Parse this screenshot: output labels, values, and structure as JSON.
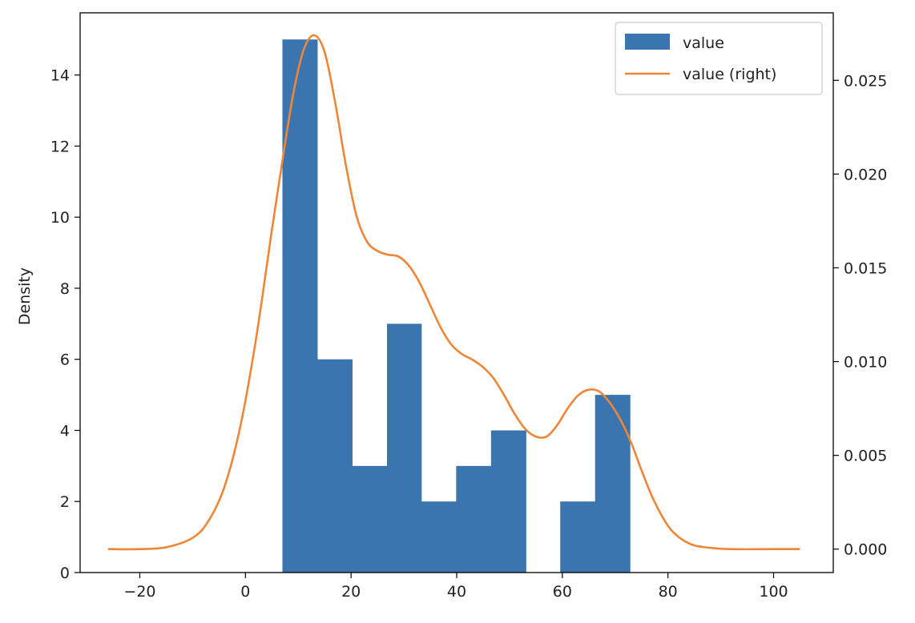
{
  "chart_data": {
    "type": "bar",
    "xlabel": "",
    "ylabel": "Density",
    "xlim": [
      -31.3,
      111.3
    ],
    "ylim": [
      0,
      15.75
    ],
    "y2lim": [
      -0.00125,
      0.0286
    ],
    "xticks": [
      -20,
      0,
      20,
      40,
      60,
      80,
      100
    ],
    "yticks": [
      0,
      2,
      4,
      6,
      8,
      10,
      12,
      14
    ],
    "y2ticks": [
      0.0,
      0.005,
      0.01,
      0.015,
      0.02,
      0.025
    ],
    "xtick_labels": [
      "−20",
      "0",
      "20",
      "40",
      "60",
      "80",
      "100"
    ],
    "ytick_labels": [
      "0",
      "2",
      "4",
      "6",
      "8",
      "10",
      "12",
      "14"
    ],
    "y2tick_labels": [
      "0.000",
      "0.005",
      "0.010",
      "0.015",
      "0.020",
      "0.025"
    ],
    "grid": false,
    "legend_position": "top-right",
    "histogram": {
      "name": "value",
      "color": "#3b75af",
      "bins": [
        {
          "x0": 7.0,
          "x1": 13.6,
          "count": 15
        },
        {
          "x0": 13.6,
          "x1": 20.2,
          "count": 6
        },
        {
          "x0": 20.2,
          "x1": 26.8,
          "count": 3
        },
        {
          "x0": 26.8,
          "x1": 33.3,
          "count": 7
        },
        {
          "x0": 33.3,
          "x1": 39.9,
          "count": 2
        },
        {
          "x0": 39.9,
          "x1": 46.5,
          "count": 3
        },
        {
          "x0": 46.5,
          "x1": 53.1,
          "count": 4
        },
        {
          "x0": 53.1,
          "x1": 59.6,
          "count": 0
        },
        {
          "x0": 59.6,
          "x1": 66.2,
          "count": 2
        },
        {
          "x0": 66.2,
          "x1": 72.8,
          "count": 5
        }
      ]
    },
    "kde": {
      "name": "value (right)",
      "color": "#ef8536",
      "axis": "right",
      "x": [
        -26,
        -20,
        -15,
        -10,
        -7,
        -4,
        -1,
        2,
        5,
        7,
        9,
        11,
        13,
        15,
        17,
        19,
        21,
        23,
        25,
        27,
        29,
        31,
        33,
        35,
        37,
        39,
        41,
        43,
        45,
        47,
        49,
        51,
        53,
        55,
        57,
        59,
        61,
        63,
        65,
        67,
        69,
        71,
        73,
        75,
        77,
        79,
        81,
        84,
        87,
        92,
        100,
        105
      ],
      "y": [
        0.0,
        0.0,
        0.0001,
        0.0006,
        0.0015,
        0.0033,
        0.0065,
        0.0112,
        0.017,
        0.0207,
        0.0242,
        0.0266,
        0.0274,
        0.0265,
        0.0238,
        0.0205,
        0.0178,
        0.0164,
        0.0159,
        0.0157,
        0.0156,
        0.0151,
        0.0142,
        0.013,
        0.0118,
        0.0109,
        0.0104,
        0.0101,
        0.0097,
        0.0091,
        0.0082,
        0.0072,
        0.0064,
        0.006,
        0.006,
        0.0066,
        0.0075,
        0.0082,
        0.0085,
        0.0084,
        0.0078,
        0.0069,
        0.0057,
        0.0042,
        0.0028,
        0.0017,
        0.0009,
        0.0003,
        0.0001,
        0.0,
        0.0,
        0.0
      ]
    }
  }
}
